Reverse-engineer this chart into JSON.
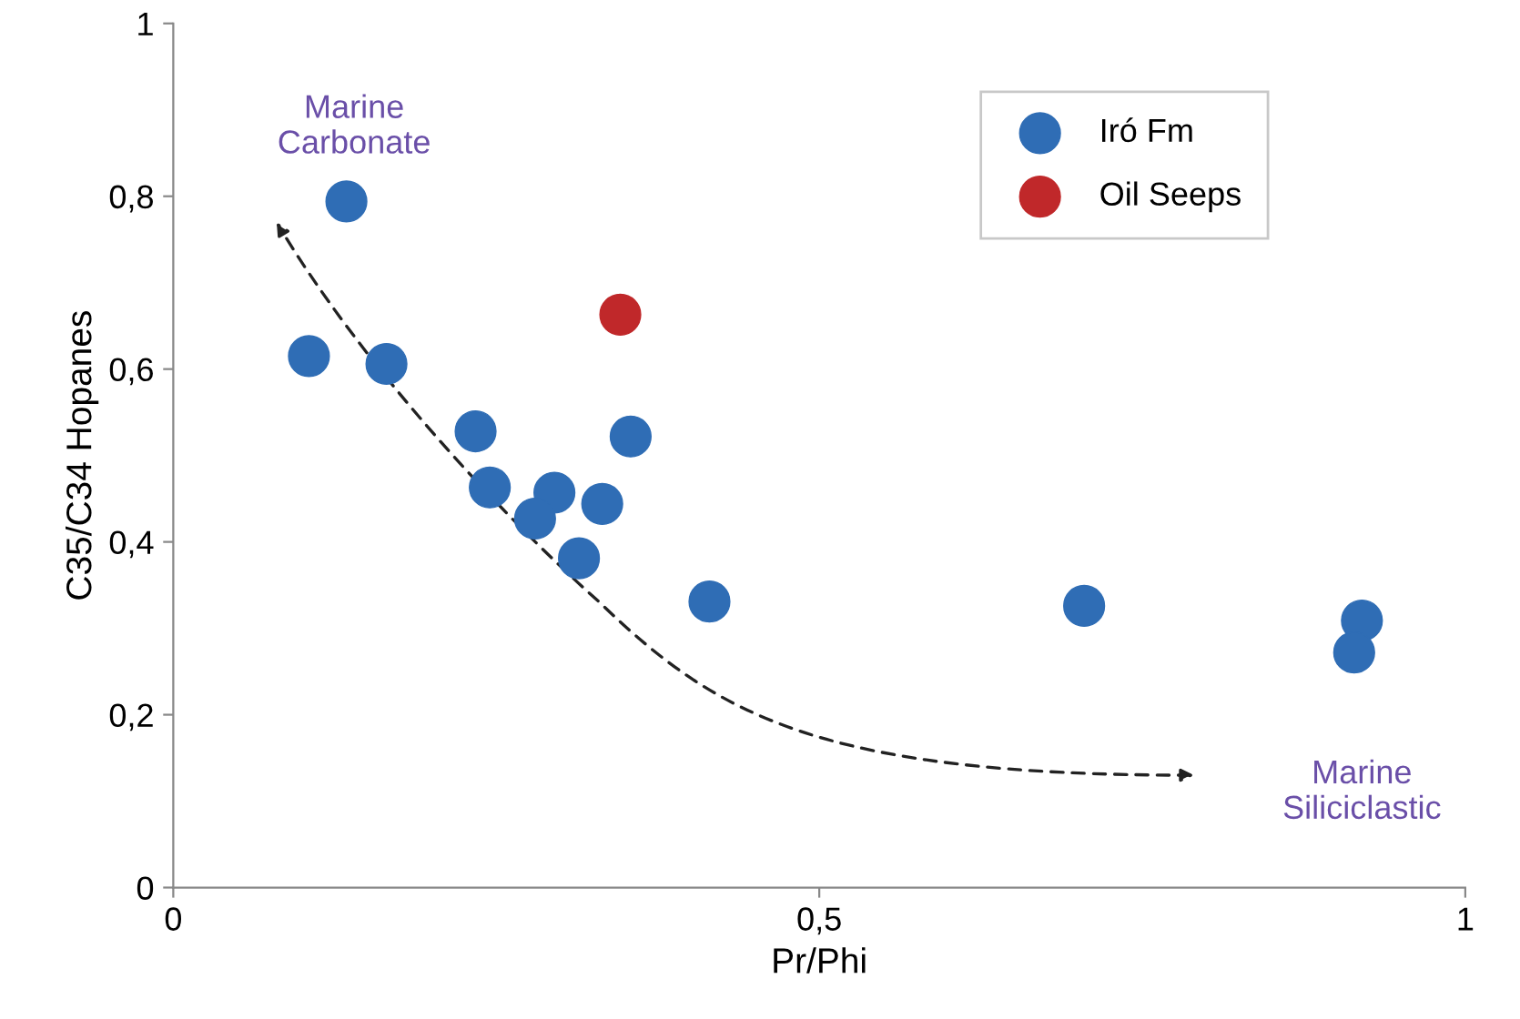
{
  "chart_data": {
    "type": "scatter",
    "xlabel": "Pr/Phi",
    "ylabel": "C35/C34 Hopanes",
    "xlim": [
      0,
      1
    ],
    "ylim": [
      0,
      1
    ],
    "xticks": [
      0,
      {
        "value": 0.5,
        "label": "0,5"
      },
      1
    ],
    "yticks": [
      0,
      {
        "value": 0.2,
        "label": "0,2"
      },
      {
        "value": 0.4,
        "label": "0,4"
      },
      {
        "value": 0.6,
        "label": "0,6"
      },
      {
        "value": 0.8,
        "label": "0,8"
      },
      1
    ],
    "grid": false,
    "legend": "top right",
    "marker": "circle",
    "annotations": [
      "Marine\nCarbonate",
      "Marine\nSiliciclastic"
    ],
    "series": [
      {
        "name": "Iró Fm",
        "color": "#2f6db5",
        "x": [
          0.134,
          0.105,
          0.165,
          0.234,
          0.245,
          0.295,
          0.28,
          0.332,
          0.354,
          0.314,
          0.415,
          0.705,
          0.92,
          0.914
        ],
        "values": [
          0.794,
          0.615,
          0.606,
          0.528,
          0.463,
          0.457,
          0.427,
          0.444,
          0.522,
          0.381,
          0.331,
          0.326,
          0.309,
          0.272
        ]
      },
      {
        "name": "Oil Seeps",
        "color": "#c0282a",
        "x": [
          0.346
        ],
        "values": [
          0.663
        ]
      }
    ]
  }
}
